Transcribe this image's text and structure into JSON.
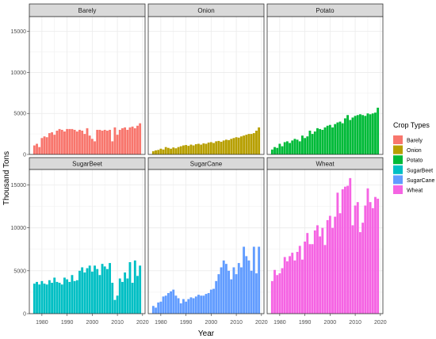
{
  "chart_data": {
    "type": "bar",
    "facet_layout": "2 rows x 3 columns, shared axes",
    "xlabel": "Year",
    "ylabel": "Thousand Tons",
    "xlim": [
      1975,
      2021
    ],
    "ylim": [
      0,
      16800
    ],
    "x_ticks": [
      "1980",
      "1990",
      "2000",
      "2010",
      "2020"
    ],
    "y_ticks": [
      "0",
      "5000",
      "10000",
      "15000"
    ],
    "grid": true,
    "legend": {
      "title": "Crop Types",
      "placement": "right"
    },
    "years": [
      1977,
      1978,
      1979,
      1980,
      1981,
      1982,
      1983,
      1984,
      1985,
      1986,
      1987,
      1988,
      1989,
      1990,
      1991,
      1992,
      1993,
      1994,
      1995,
      1996,
      1997,
      1998,
      1999,
      2000,
      2001,
      2002,
      2003,
      2004,
      2005,
      2006,
      2007,
      2008,
      2009,
      2010,
      2011,
      2012,
      2013,
      2014,
      2015,
      2016,
      2017,
      2018,
      2019
    ],
    "series": [
      {
        "name": "Barely",
        "color": "#F8766D",
        "values": [
          1100,
          1300,
          900,
          2000,
          2200,
          2100,
          2600,
          2700,
          2400,
          2900,
          3100,
          3000,
          2800,
          3100,
          3100,
          3100,
          3000,
          2800,
          3000,
          2900,
          2500,
          3200,
          2300,
          1900,
          1600,
          3000,
          3000,
          2900,
          3000,
          2900,
          3000,
          1600,
          3300,
          2400,
          3000,
          3200,
          3300,
          3000,
          3300,
          3400,
          3200,
          3500,
          3800
        ]
      },
      {
        "name": "Onion",
        "color": "#B79F00",
        "values": [
          400,
          500,
          550,
          700,
          600,
          900,
          800,
          700,
          850,
          750,
          900,
          1000,
          1100,
          1150,
          1050,
          1200,
          1100,
          1250,
          1300,
          1200,
          1350,
          1300,
          1450,
          1500,
          1400,
          1600,
          1650,
          1550,
          1700,
          1800,
          1750,
          1900,
          2000,
          2100,
          2050,
          2200,
          2300,
          2400,
          2500,
          2500,
          2600,
          2900,
          3300
        ]
      },
      {
        "name": "Potato",
        "color": "#00BA38",
        "values": [
          600,
          900,
          800,
          1300,
          1000,
          1500,
          1600,
          1400,
          1700,
          1900,
          1800,
          1600,
          2300,
          2000,
          2200,
          2900,
          2500,
          2800,
          3200,
          3100,
          3000,
          3300,
          3500,
          3600,
          3300,
          3700,
          3900,
          4000,
          3800,
          4400,
          4800,
          4200,
          4500,
          4700,
          4800,
          4900,
          4800,
          4700,
          5000,
          4900,
          5000,
          5100,
          5700
        ]
      },
      {
        "name": "SugarBeet",
        "color": "#00BFC4",
        "values": [
          3500,
          3700,
          3400,
          3800,
          3500,
          3400,
          3900,
          3600,
          4200,
          3700,
          3600,
          3400,
          4200,
          4000,
          3700,
          4500,
          3800,
          3900,
          5000,
          5400,
          4800,
          5300,
          5600,
          4900,
          5600,
          5200,
          4500,
          5800,
          5500,
          5200,
          5900,
          3600,
          1600,
          2100,
          4100,
          3700,
          4800,
          4100,
          6000,
          3600,
          6200,
          4400,
          5600
        ]
      },
      {
        "name": "SugarCane",
        "color": "#619CFF",
        "values": [
          900,
          700,
          1300,
          1400,
          2000,
          2100,
          2400,
          2600,
          2800,
          2100,
          1800,
          1200,
          1700,
          1400,
          1700,
          1900,
          1800,
          2000,
          2200,
          2100,
          2100,
          2300,
          2400,
          2800,
          2900,
          3800,
          4600,
          5400,
          6200,
          5800,
          5000,
          4000,
          5400,
          4600,
          5900,
          5400,
          7800,
          6700,
          6200,
          5000,
          7800,
          4700,
          7800
        ]
      },
      {
        "name": "Wheat",
        "color": "#F564E3",
        "values": [
          3800,
          5100,
          4500,
          4700,
          5300,
          6600,
          6100,
          6700,
          7100,
          6200,
          7200,
          7900,
          6300,
          8400,
          9400,
          8100,
          8100,
          9700,
          10300,
          9000,
          10000,
          8000,
          10900,
          11400,
          10000,
          11300,
          14100,
          11700,
          14500,
          14800,
          14900,
          15800,
          10300,
          12600,
          13000,
          9500,
          10600,
          12600,
          14600,
          13000,
          12300,
          13600,
          13400
        ]
      }
    ]
  },
  "panels": [
    {
      "title": "Barely",
      "series": 0
    },
    {
      "title": "Onion",
      "series": 1
    },
    {
      "title": "Potato",
      "series": 2
    },
    {
      "title": "SugarBeet",
      "series": 3
    },
    {
      "title": "SugarCane",
      "series": 4
    },
    {
      "title": "Wheat",
      "series": 5
    }
  ],
  "colors": {
    "panel_border": "#333333",
    "strip_fill": "#D9D9D9",
    "grid_major": "#EBEBEB",
    "axis_text": "#4D4D4D"
  }
}
